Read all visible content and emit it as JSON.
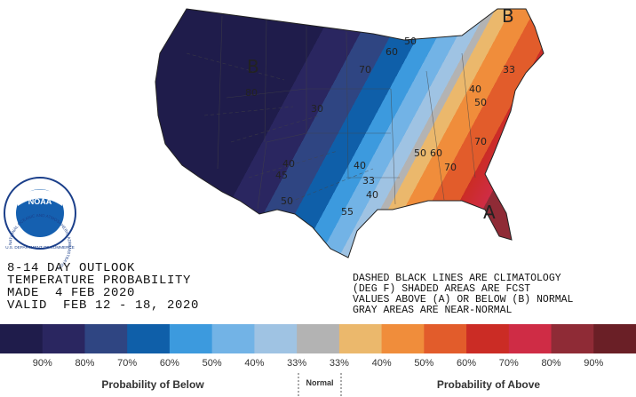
{
  "map": {
    "labels": [
      {
        "text": "B"
      },
      {
        "text": "B"
      },
      {
        "text": "A"
      },
      {
        "text": "80"
      },
      {
        "text": "70"
      },
      {
        "text": "60"
      },
      {
        "text": "50"
      },
      {
        "text": "33"
      },
      {
        "text": "40"
      },
      {
        "text": "50"
      },
      {
        "text": "30"
      },
      {
        "text": "40"
      },
      {
        "text": "45"
      },
      {
        "text": "50"
      },
      {
        "text": "40"
      },
      {
        "text": "33"
      },
      {
        "text": "40"
      },
      {
        "text": "55"
      },
      {
        "text": "50"
      },
      {
        "text": "60"
      },
      {
        "text": "70"
      },
      {
        "text": "70"
      }
    ]
  },
  "logo": {
    "name": "NOAA",
    "agency": "NATIONAL OCEANIC AND ATMOSPHERIC ADMINISTRATION",
    "department": "U.S. DEPARTMENT OF COMMERCE"
  },
  "outlook": {
    "lines": [
      "8-14 DAY OUTLOOK",
      "TEMPERATURE PROBABILITY",
      "MADE  4 FEB 2020",
      "VALID  FEB 12 - 18, 2020"
    ]
  },
  "notes": {
    "lines": [
      "DASHED BLACK LINES ARE CLIMATOLOGY",
      "(DEG F) SHADED AREAS ARE FCST",
      "VALUES ABOVE (A) OR BELOW (B) NORMAL",
      "GRAY AREAS ARE NEAR-NORMAL"
    ]
  },
  "legend": {
    "colors": [
      "#1f1c4b",
      "#2a2660",
      "#2f4582",
      "#0f5fa9",
      "#3c9ade",
      "#72b3e6",
      "#9fc3e3",
      "#b3b3b3",
      "#ebb86c",
      "#f08d3b",
      "#e25c2b",
      "#cb2c25",
      "#cf2c45",
      "#8f2b36",
      "#6a1f26"
    ],
    "labels": [
      "90%",
      "80%",
      "70%",
      "60%",
      "50%",
      "40%",
      "33%",
      "33%",
      "40%",
      "50%",
      "60%",
      "70%",
      "80%",
      "90%"
    ],
    "below": "Probability of Below",
    "normal": "Normal",
    "above": "Probability of Above"
  }
}
